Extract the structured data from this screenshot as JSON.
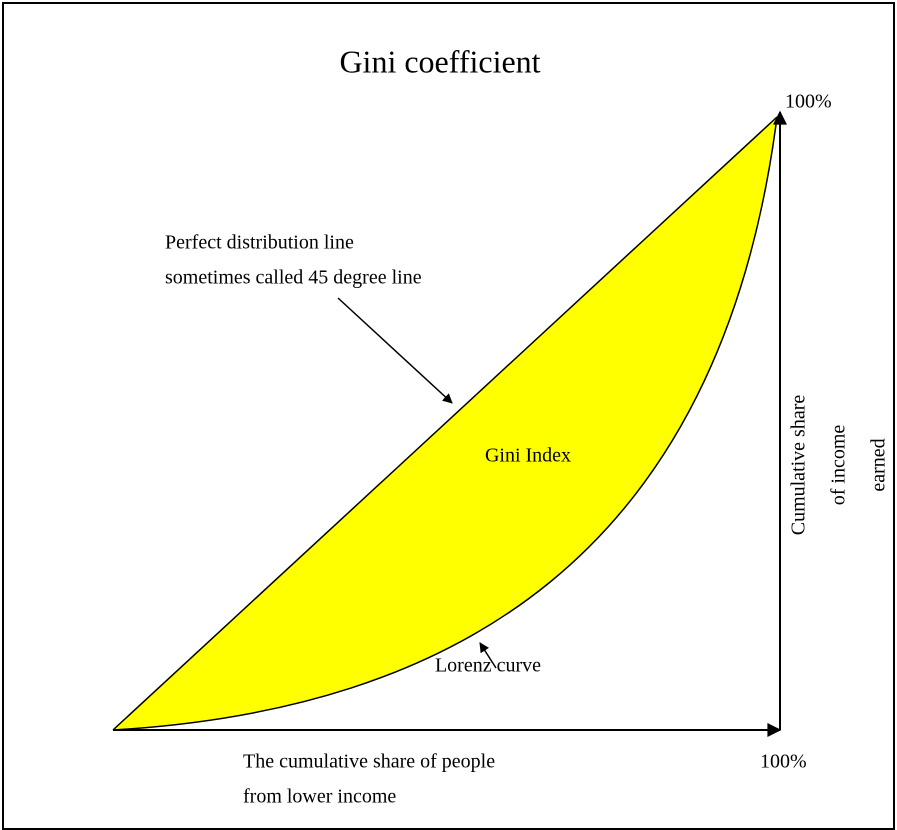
{
  "title": "Gini coefficient",
  "labels": {
    "top_right": "100%",
    "bottom_right": "100%",
    "perfect_line": [
      "Perfect distribution line",
      "sometimes called 45 degree line"
    ],
    "gini_index": "Gini Index",
    "lorenz_curve": "Lorenz curve",
    "y_axis": [
      "Cumulative share",
      "of income",
      "earned"
    ],
    "x_axis": [
      "The cumulative share of people",
      "from lower income"
    ]
  }
}
